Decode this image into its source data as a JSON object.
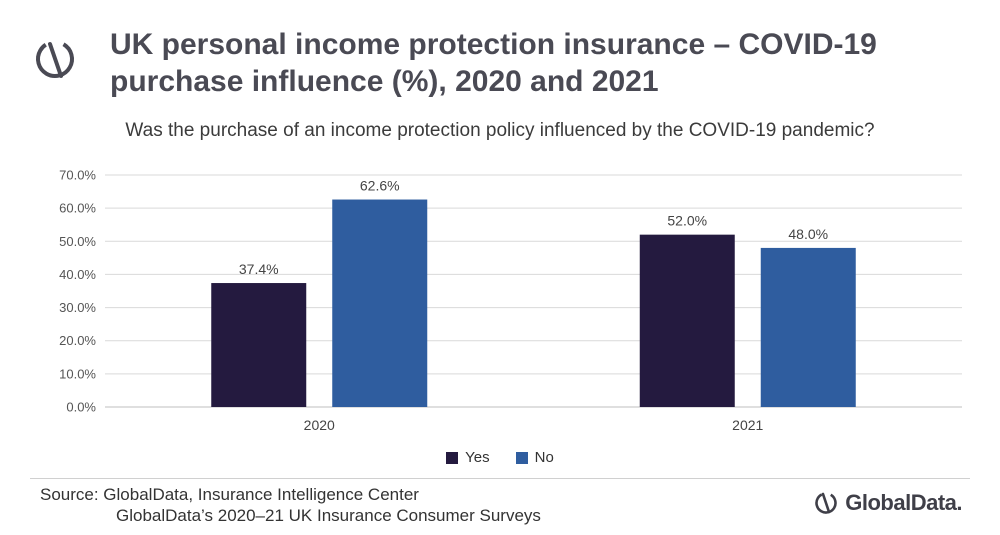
{
  "header": {
    "title": "UK personal income protection insurance – COVID-19 purchase influence (%), 2020 and 2021",
    "subtitle": "Was the purchase of an income protection policy influenced by the COVID-19 pandemic?",
    "logo_icon": "globaldata-logo-icon"
  },
  "chart_data": {
    "type": "bar",
    "title": "UK personal income protection insurance – COVID-19 purchase influence (%), 2020 and 2021",
    "subtitle": "Was the purchase of an income protection policy influenced by the COVID-19 pandemic?",
    "categories": [
      "2020",
      "2021"
    ],
    "series": [
      {
        "name": "Yes",
        "values": [
          37.4,
          52.0
        ],
        "color": "#241a3f"
      },
      {
        "name": "No",
        "values": [
          62.6,
          48.0
        ],
        "color": "#2f5d9f"
      }
    ],
    "value_labels": [
      [
        "37.4%",
        "52.0%"
      ],
      [
        "62.6%",
        "48.0%"
      ]
    ],
    "ylim": [
      0,
      70
    ],
    "yticks": [
      "0.0%",
      "10.0%",
      "20.0%",
      "30.0%",
      "40.0%",
      "50.0%",
      "60.0%",
      "70.0%"
    ],
    "grid": true,
    "legend_position": "bottom"
  },
  "footer": {
    "source_line1": "Source: GlobalData, Insurance Intelligence Center",
    "source_line2": "GlobalData’s 2020–21 UK Insurance Consumer Surveys",
    "brand_name": "GlobalData."
  }
}
